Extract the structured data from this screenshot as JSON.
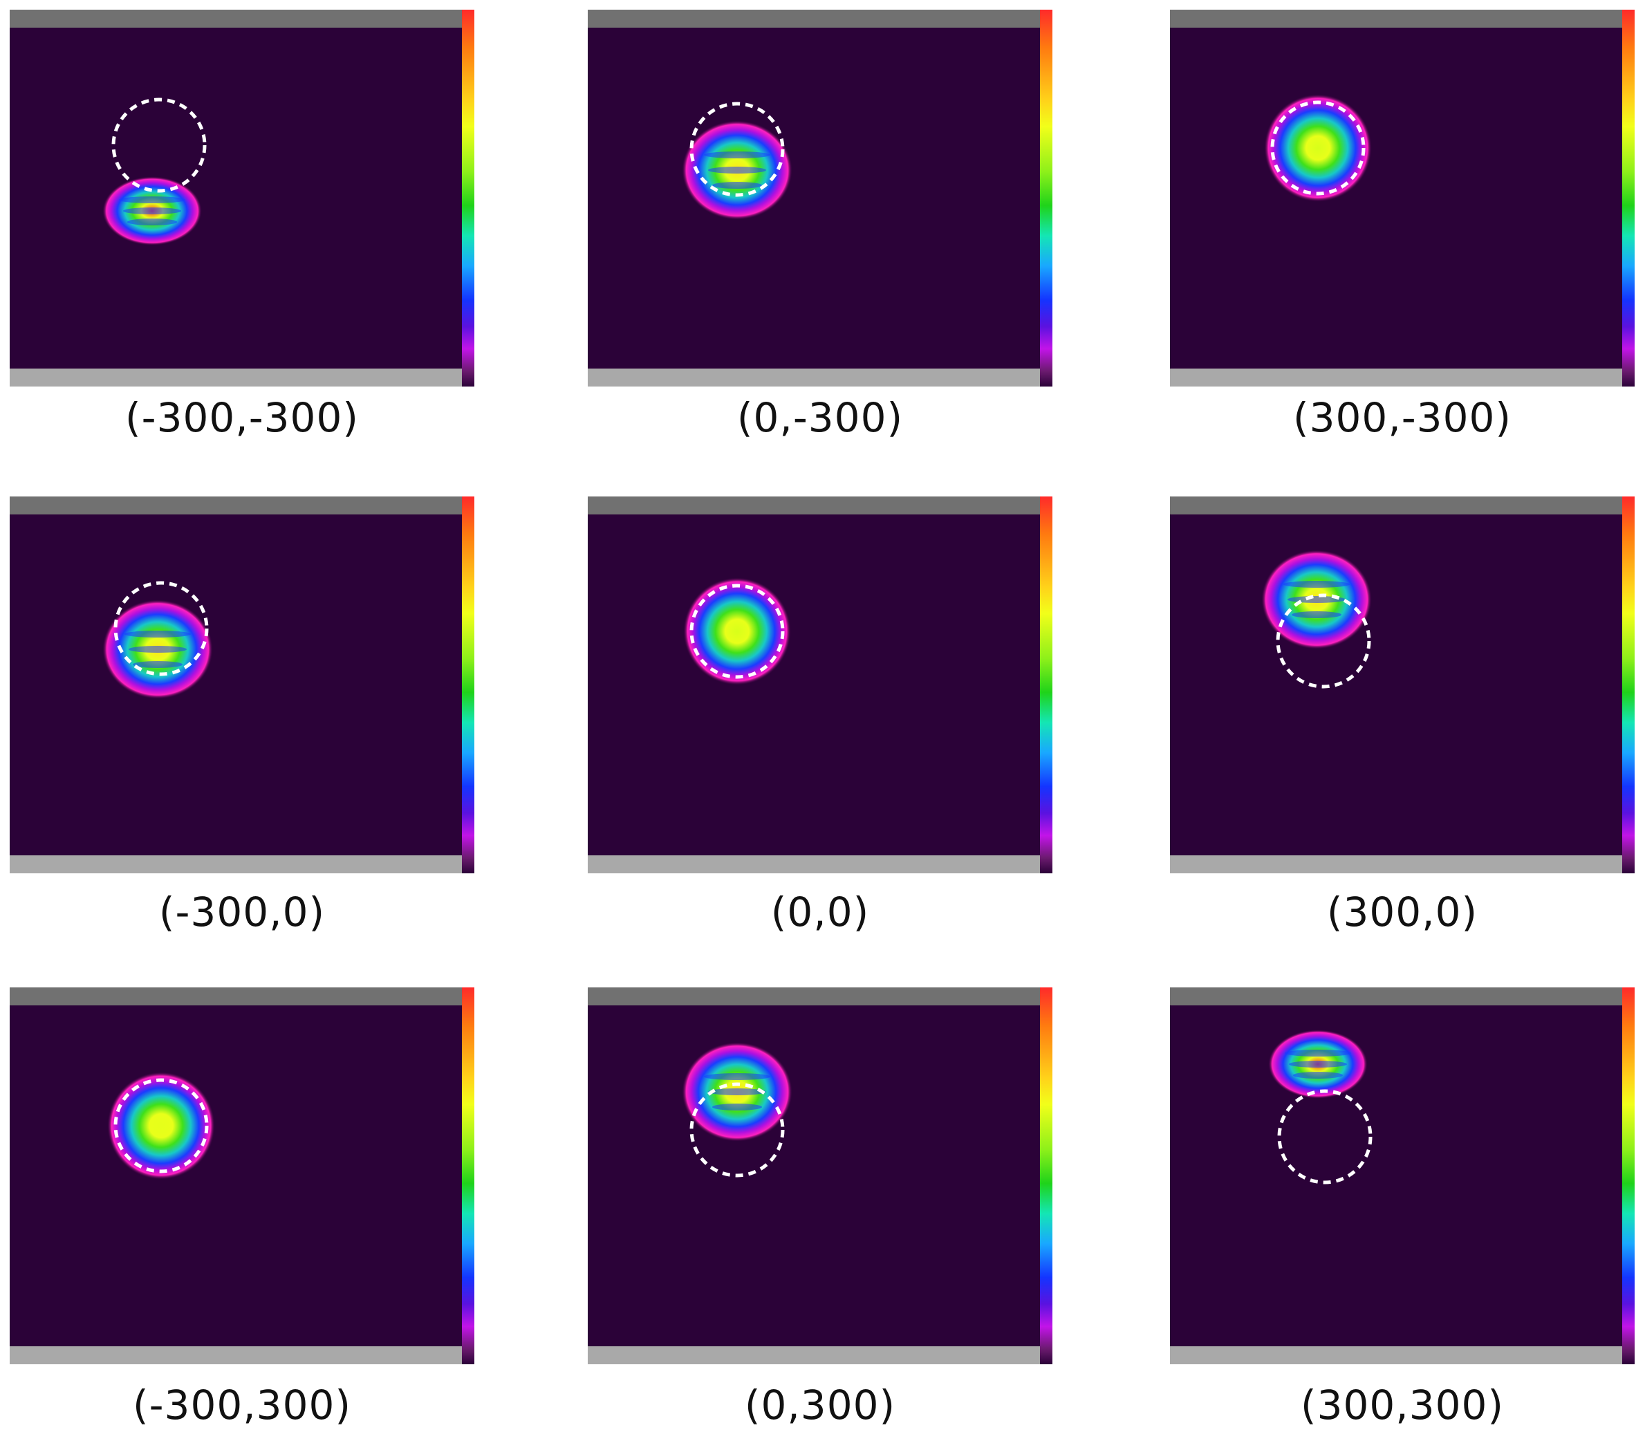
{
  "panels": [
    {
      "label": "(-300,-300)"
    },
    {
      "label": "(0,-300)"
    },
    {
      "label": "(300,-300)"
    },
    {
      "label": "(-300,0)"
    },
    {
      "label": "(0,0)"
    },
    {
      "label": "(300,0)"
    },
    {
      "label": "(-300,300)"
    },
    {
      "label": "(0,300)"
    },
    {
      "label": "(300,300)"
    }
  ],
  "colors": {
    "background": "#2b0238",
    "top_bar": "#717171",
    "bottom_bar": "#a9a9a9",
    "circle": "#ffffff"
  }
}
